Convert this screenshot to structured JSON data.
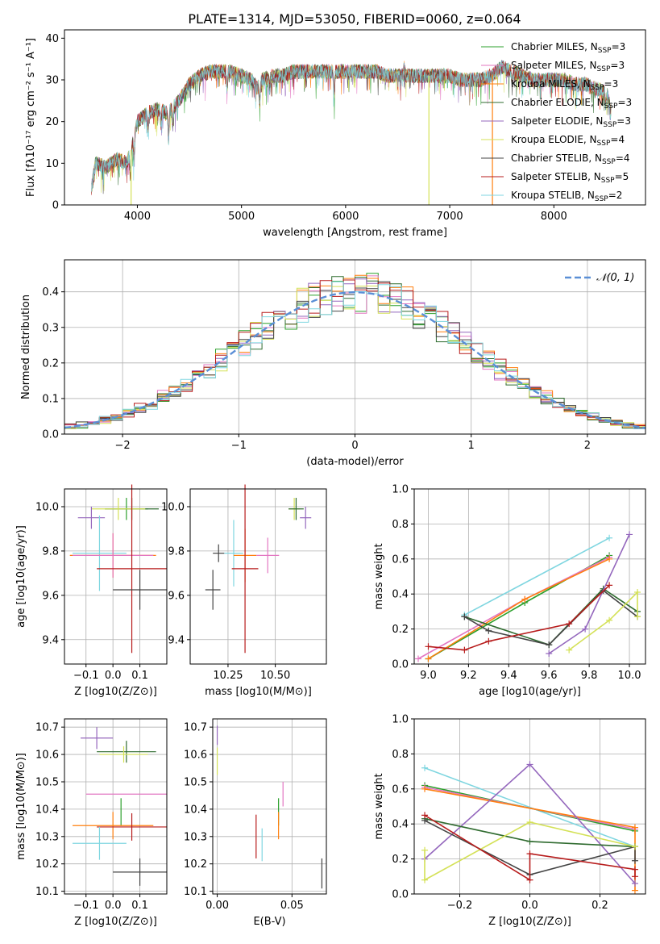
{
  "page_title": "PLATE=1314, MJD=53050, FIBERID=0060, z=0.064",
  "colors": {
    "cm": "#2ca02c",
    "sm": "#e377c2",
    "km": "#ff7f0e",
    "ce": "#2f6b2f",
    "se": "#9467bd",
    "ke": "#d4e157",
    "cs": "#444444",
    "ss": "#b71c1c",
    "ks": "#7fd6e0",
    "normal": "#5b8fd6"
  },
  "models": [
    {
      "id": "cm",
      "label": "Chabrier MILES, N",
      "sub": "SSP",
      "tail": "=3"
    },
    {
      "id": "sm",
      "label": "Salpeter MILES, N",
      "sub": "SSP",
      "tail": "=3"
    },
    {
      "id": "km",
      "label": "Kroupa MILES, N",
      "sub": "SSP",
      "tail": "=3"
    },
    {
      "id": "ce",
      "label": "Chabrier ELODIE, N",
      "sub": "SSP",
      "tail": "=3"
    },
    {
      "id": "se",
      "label": "Salpeter ELODIE, N",
      "sub": "SSP",
      "tail": "=3"
    },
    {
      "id": "ke",
      "label": "Kroupa ELODIE, N",
      "sub": "SSP",
      "tail": "=4"
    },
    {
      "id": "cs",
      "label": "Chabrier STELIB, N",
      "sub": "SSP",
      "tail": "=4"
    },
    {
      "id": "ss",
      "label": "Salpeter STELIB, N",
      "sub": "SSP",
      "tail": "=5"
    },
    {
      "id": "ks",
      "label": "Kroupa STELIB, N",
      "sub": "SSP",
      "tail": "=2"
    }
  ],
  "chart_data": [
    {
      "id": "spectrum",
      "type": "line",
      "xlabel": "wavelength [Angstrom, rest frame]",
      "ylabel": "Flux [fλ10⁻¹⁷ erg cm⁻² s⁻¹ A⁻¹]",
      "xlim": [
        3300,
        8880
      ],
      "ylim": [
        0,
        42
      ],
      "xticks": [
        4000,
        5000,
        6000,
        7000,
        8000
      ],
      "yticks": [
        0,
        10,
        20,
        30,
        40
      ],
      "continuum": [
        [
          3560,
          4
        ],
        [
          3600,
          10
        ],
        [
          3700,
          9
        ],
        [
          3800,
          11
        ],
        [
          3900,
          10
        ],
        [
          3950,
          14
        ],
        [
          4000,
          20
        ],
        [
          4100,
          22
        ],
        [
          4200,
          23
        ],
        [
          4300,
          22
        ],
        [
          4400,
          25
        ],
        [
          4500,
          29
        ],
        [
          4600,
          31
        ],
        [
          4700,
          32
        ],
        [
          4800,
          32
        ],
        [
          4900,
          32
        ],
        [
          5000,
          31
        ],
        [
          5100,
          30
        ],
        [
          5150,
          28
        ],
        [
          5200,
          30
        ],
        [
          5300,
          31
        ],
        [
          5400,
          31
        ],
        [
          5500,
          32
        ],
        [
          5600,
          32
        ],
        [
          5700,
          32
        ],
        [
          5800,
          32
        ],
        [
          5900,
          32
        ],
        [
          6000,
          32
        ],
        [
          6100,
          32
        ],
        [
          6200,
          32
        ],
        [
          6300,
          32
        ],
        [
          6400,
          31
        ],
        [
          6500,
          31
        ],
        [
          6600,
          31
        ],
        [
          6700,
          31
        ],
        [
          6800,
          31
        ],
        [
          6900,
          31
        ],
        [
          7000,
          31
        ],
        [
          7100,
          30
        ],
        [
          7200,
          30
        ],
        [
          7300,
          30
        ],
        [
          7400,
          31
        ],
        [
          7500,
          33
        ],
        [
          7600,
          32
        ],
        [
          7700,
          31
        ],
        [
          7800,
          30
        ],
        [
          7900,
          30
        ],
        [
          8000,
          30
        ],
        [
          8100,
          30
        ],
        [
          8200,
          29
        ],
        [
          8300,
          29
        ],
        [
          8400,
          28
        ],
        [
          8500,
          27
        ],
        [
          8550,
          24
        ]
      ],
      "absorption": [
        [
          3934,
          6
        ],
        [
          3968,
          5
        ],
        [
          4102,
          4
        ],
        [
          4226,
          4
        ],
        [
          4300,
          6
        ],
        [
          4340,
          4
        ],
        [
          4861,
          4
        ],
        [
          5175,
          5
        ],
        [
          5270,
          3
        ],
        [
          5890,
          6
        ],
        [
          6563,
          -2
        ],
        [
          7600,
          3
        ],
        [
          8498,
          3
        ],
        [
          8542,
          3
        ]
      ],
      "spikes": [
        {
          "model": "ke",
          "x": 6800,
          "to": 0
        },
        {
          "model": "km",
          "x": 7410,
          "to": 0
        },
        {
          "model": "ke",
          "x": 3940,
          "to": 0
        }
      ]
    },
    {
      "id": "residuals",
      "type": "histogram",
      "xlabel": "(data-model)/error",
      "ylabel": "Normed distribution",
      "xlim": [
        -2.5,
        2.5
      ],
      "ylim": [
        0,
        0.49
      ],
      "xticks": [
        -2,
        -1,
        0,
        1,
        2
      ],
      "yticks": [
        0.0,
        0.1,
        0.2,
        0.3,
        0.4
      ],
      "bin_width": 0.1,
      "legend": "N(0,1)"
    },
    {
      "id": "age_vs_Z",
      "type": "errorbar",
      "xlabel": "Z [log10(Z/Z⊙)]",
      "ylabel": "age  [log10(age/yr)]",
      "xlim": [
        -0.18,
        0.2
      ],
      "ylim": [
        9.29,
        10.08
      ],
      "xticks": [
        -0.1,
        0.0,
        0.1
      ],
      "yticks": [
        9.4,
        9.6,
        9.8,
        10.0
      ],
      "points": [
        {
          "model": "cm",
          "x": 0.05,
          "y": 9.99,
          "xe": 0.08,
          "ye": 0.05
        },
        {
          "model": "ce",
          "x": 0.07,
          "y": 9.99,
          "xe": 0.1,
          "ye": 0.05
        },
        {
          "model": "ke",
          "x": 0.02,
          "y": 9.99,
          "xe": 0.1,
          "ye": 0.05
        },
        {
          "model": "se",
          "x": -0.08,
          "y": 9.95,
          "xe": 0.05,
          "ye": 0.05
        },
        {
          "model": "ks",
          "x": -0.05,
          "y": 9.79,
          "xe": 0.1,
          "ye": 0.17
        },
        {
          "model": "km",
          "x": 0.0,
          "y": 9.78,
          "xe": 0.16,
          "ye": 0.1
        },
        {
          "model": "sm",
          "x": 0.0,
          "y": 9.78,
          "xe": 0.15,
          "ye": 0.1
        },
        {
          "model": "ss",
          "x": 0.07,
          "y": 9.72,
          "xe": 0.13,
          "ye": 0.38
        },
        {
          "model": "cs",
          "x": 0.1,
          "y": 9.625,
          "xe": 0.1,
          "ye": 0.09
        }
      ]
    },
    {
      "id": "age_vs_mass",
      "type": "errorbar",
      "xlabel": "mass [log10(M/M⊙)]",
      "ylabel": "",
      "xlim": [
        10.05,
        10.77
      ],
      "ylim": [
        9.29,
        10.08
      ],
      "xticks": [
        10.25,
        10.5
      ],
      "yticks": [
        9.4,
        9.6,
        9.8,
        10.0
      ],
      "points": [
        {
          "model": "ke",
          "x": 10.6,
          "y": 9.99,
          "xe": 0.03,
          "ye": 0.05
        },
        {
          "model": "ce",
          "x": 10.61,
          "y": 9.99,
          "xe": 0.04,
          "ye": 0.05
        },
        {
          "model": "se",
          "x": 10.66,
          "y": 9.95,
          "xe": 0.03,
          "ye": 0.05
        },
        {
          "model": "ks",
          "x": 10.28,
          "y": 9.79,
          "xe": 0.05,
          "ye": 0.15
        },
        {
          "model": "km",
          "x": 10.34,
          "y": 9.78,
          "xe": 0.06,
          "ye": 0.12
        },
        {
          "model": "sm",
          "x": 10.46,
          "y": 9.78,
          "xe": 0.06,
          "ye": 0.08
        },
        {
          "model": "ss",
          "x": 10.34,
          "y": 9.72,
          "xe": 0.07,
          "ye": 0.38
        },
        {
          "model": "cs",
          "x": 10.17,
          "y": 9.625,
          "xe": 0.04,
          "ye": 0.09
        },
        {
          "model": "cs",
          "x": 10.2,
          "y": 9.79,
          "xe": 0.03,
          "ye": 0.04
        }
      ]
    },
    {
      "id": "massweight_vs_age",
      "type": "line",
      "xlabel": "age  [log10(age/yr)]",
      "ylabel": "mass weight",
      "xlim": [
        8.93,
        10.08
      ],
      "ylim": [
        0.0,
        1.0
      ],
      "xticks": [
        9.0,
        9.2,
        9.4,
        9.6,
        9.8,
        10.0
      ],
      "yticks": [
        0.0,
        0.2,
        0.4,
        0.6,
        0.8,
        1.0
      ],
      "series": [
        {
          "model": "ks",
          "x": [
            9.18,
            9.9
          ],
          "y": [
            0.28,
            0.72
          ]
        },
        {
          "model": "cm",
          "x": [
            9.0,
            9.48,
            9.9
          ],
          "y": [
            0.03,
            0.35,
            0.62
          ]
        },
        {
          "model": "sm",
          "x": [
            8.95,
            9.48,
            9.9
          ],
          "y": [
            0.03,
            0.37,
            0.61
          ]
        },
        {
          "model": "km",
          "x": [
            9.0,
            9.48,
            9.9
          ],
          "y": [
            0.03,
            0.37,
            0.6
          ]
        },
        {
          "model": "ce",
          "x": [
            9.18,
            9.6,
            9.87,
            10.04
          ],
          "y": [
            0.27,
            0.11,
            0.43,
            0.3
          ]
        },
        {
          "model": "cs",
          "x": [
            9.18,
            9.3,
            9.6,
            9.87,
            10.04
          ],
          "y": [
            0.27,
            0.19,
            0.11,
            0.42,
            0.27
          ]
        },
        {
          "model": "se",
          "x": [
            9.6,
            9.78,
            10.0
          ],
          "y": [
            0.06,
            0.2,
            0.74
          ]
        },
        {
          "model": "ke",
          "x": [
            9.7,
            9.9,
            10.04,
            10.04
          ],
          "y": [
            0.08,
            0.25,
            0.41,
            0.27
          ]
        },
        {
          "model": "ss",
          "x": [
            9.0,
            9.18,
            9.3,
            9.7,
            9.9
          ],
          "y": [
            0.1,
            0.08,
            0.13,
            0.23,
            0.45
          ]
        }
      ]
    },
    {
      "id": "mass_vs_Z",
      "type": "errorbar",
      "xlabel": "Z [log10(Z/Z⊙)]",
      "ylabel": "mass [log10(M/M⊙)]",
      "xlim": [
        -0.18,
        0.2
      ],
      "ylim": [
        10.09,
        10.73
      ],
      "xticks": [
        -0.1,
        0.0,
        0.1
      ],
      "yticks": [
        10.1,
        10.2,
        10.3,
        10.4,
        10.5,
        10.6,
        10.7
      ],
      "points": [
        {
          "model": "se",
          "x": -0.06,
          "y": 10.66,
          "xe": 0.06,
          "ye": 0.04
        },
        {
          "model": "ce",
          "x": 0.05,
          "y": 10.61,
          "xe": 0.11,
          "ye": 0.04
        },
        {
          "model": "ke",
          "x": 0.04,
          "y": 10.6,
          "xe": 0.09,
          "ye": 0.03
        },
        {
          "model": "sm",
          "x": 0.05,
          "y": 10.455,
          "xe": 0.15,
          "ye": 0.0
        },
        {
          "model": "cm",
          "x": 0.03,
          "y": 10.39,
          "xe": 0.0,
          "ye": 0.05
        },
        {
          "model": "km",
          "x": 0.0,
          "y": 10.34,
          "xe": 0.15,
          "ye": 0.05
        },
        {
          "model": "ss",
          "x": 0.07,
          "y": 10.335,
          "xe": 0.13,
          "ye": 0.05
        },
        {
          "model": "ks",
          "x": -0.05,
          "y": 10.275,
          "xe": 0.1,
          "ye": 0.06
        },
        {
          "model": "cs",
          "x": 0.1,
          "y": 10.17,
          "xe": 0.1,
          "ye": 0.05
        }
      ]
    },
    {
      "id": "mass_vs_EBV",
      "type": "errorbar",
      "xlabel": "E(B-V)",
      "ylabel": "",
      "xlim": [
        -0.003,
        0.073
      ],
      "ylim": [
        10.09,
        10.73
      ],
      "xticks": [
        0.0,
        0.05
      ],
      "tick_labels": [
        "0.00",
        "0.05"
      ],
      "yticks": [
        10.1,
        10.2,
        10.3,
        10.4,
        10.5,
        10.6,
        10.7
      ],
      "points": [
        {
          "model": "se",
          "x": 0.0,
          "y": 10.67,
          "xe": 0,
          "ye": 0.035
        },
        {
          "model": "ke",
          "x": 0.0,
          "y": 10.575,
          "xe": 0,
          "ye": 0.05
        },
        {
          "model": "sm",
          "x": 0.044,
          "y": 10.455,
          "xe": 0,
          "ye": 0.045
        },
        {
          "model": "cm",
          "x": 0.041,
          "y": 10.39,
          "xe": 0,
          "ye": 0.05
        },
        {
          "model": "km",
          "x": 0.041,
          "y": 10.34,
          "xe": 0,
          "ye": 0.05
        },
        {
          "model": "ss",
          "x": 0.026,
          "y": 10.3,
          "xe": 0,
          "ye": 0.08
        },
        {
          "model": "ks",
          "x": 0.03,
          "y": 10.27,
          "xe": 0,
          "ye": 0.06
        },
        {
          "model": "cs",
          "x": 0.07,
          "y": 10.165,
          "xe": 0,
          "ye": 0.055
        }
      ]
    },
    {
      "id": "massweight_vs_Z",
      "type": "line",
      "xlabel": "Z [log10(Z/Z⊙)]",
      "ylabel": "mass weight",
      "xlim": [
        -0.33,
        0.33
      ],
      "ylim": [
        0.0,
        1.0
      ],
      "xticks": [
        -0.2,
        0.0,
        0.2
      ],
      "yticks": [
        0.0,
        0.2,
        0.4,
        0.6,
        0.8,
        1.0
      ],
      "series": [
        {
          "model": "ks",
          "x": [
            -0.3,
            0.3
          ],
          "y": [
            0.72,
            0.27
          ]
        },
        {
          "model": "cm",
          "x": [
            -0.3,
            0.3
          ],
          "y": [
            0.62,
            0.36
          ]
        },
        {
          "model": "sm",
          "x": [
            -0.3,
            0.3
          ],
          "y": [
            0.61,
            0.37
          ]
        },
        {
          "model": "km",
          "x": [
            -0.3,
            0.3,
            0.3
          ],
          "y": [
            0.6,
            0.38,
            0.02
          ]
        },
        {
          "model": "se",
          "x": [
            -0.3,
            0.0,
            0.3
          ],
          "y": [
            0.2,
            0.74,
            0.06
          ]
        },
        {
          "model": "ce",
          "x": [
            -0.3,
            0.0,
            0.3
          ],
          "y": [
            0.43,
            0.3,
            0.27
          ]
        },
        {
          "model": "cs",
          "x": [
            -0.3,
            0.0,
            0.3,
            0.3
          ],
          "y": [
            0.42,
            0.11,
            0.27,
            0.19
          ]
        },
        {
          "model": "ke",
          "x": [
            -0.3,
            -0.3,
            0.0,
            0.3
          ],
          "y": [
            0.25,
            0.08,
            0.41,
            0.27
          ]
        },
        {
          "model": "ss",
          "x": [
            -0.3,
            0.0,
            0.0,
            0.3,
            0.3
          ],
          "y": [
            0.45,
            0.08,
            0.23,
            0.14,
            0.1
          ]
        }
      ]
    }
  ]
}
